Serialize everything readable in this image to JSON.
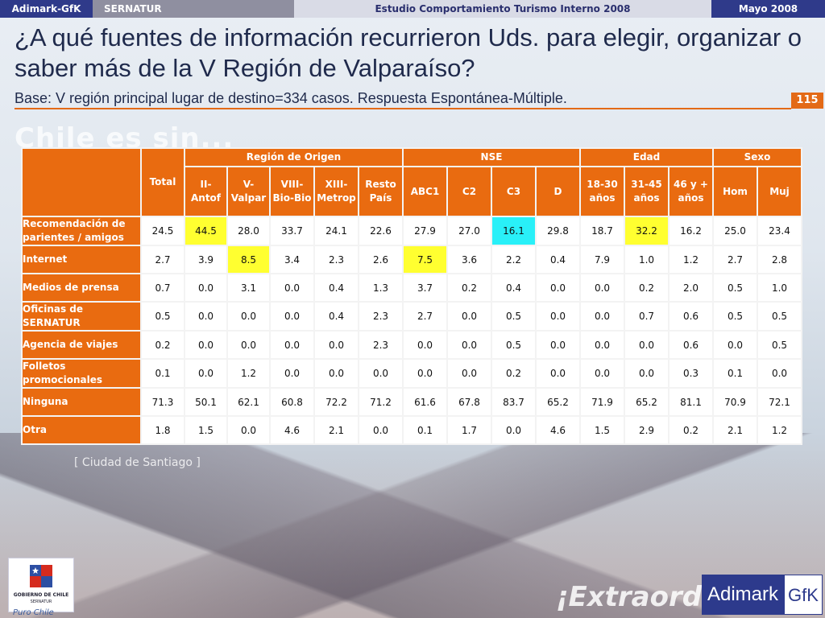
{
  "topbar": {
    "left": "Adimark-GfK",
    "client": "SERNATUR",
    "study": "Estudio Comportamiento Turismo Interno 2008",
    "date": "Mayo 2008"
  },
  "title": "¿A qué fuentes de información recurrieron Uds. para elegir, organizar o saber más de la V Región de Valparaíso?",
  "subtitle": "Base: V región principal lugar de destino=334 casos.  Respuesta Espontánea-Múltiple.",
  "page_number": "115",
  "background": {
    "headline": "Chile es sin...",
    "caption": "[ Ciudad de Santiago ]",
    "slogan": "¡Extraord"
  },
  "table": {
    "total_label": "Total",
    "groups": {
      "region": "Región de Origen",
      "nse": "NSE",
      "edad": "Edad",
      "sexo": "Sexo"
    },
    "columns": {
      "antof_l1": "II-",
      "antof_l2": "Antof",
      "valpar_l1": "V-",
      "valpar_l2": "Valpar",
      "biobio_l1": "VIII-",
      "biobio_l2": "Bio-Bio",
      "metrop_l1": "XIII-",
      "metrop_l2": "Metrop",
      "resto_l1": "Resto",
      "resto_l2": "País",
      "abc1": "ABC1",
      "c2": "C2",
      "c3": "C3",
      "d": "D",
      "e1_l1": "18-30",
      "e1_l2": "años",
      "e2_l1": "31-45",
      "e2_l2": "años",
      "e3_l1": "46 y +",
      "e3_l2": "años",
      "hom": "Hom",
      "muj": "Muj"
    },
    "rows": [
      {
        "label_l1": "Recomendación de",
        "label_l2": "parientes / amigos",
        "values": [
          "24.5",
          "44.5",
          "28.0",
          "33.7",
          "24.1",
          "22.6",
          "27.9",
          "27.0",
          "16.1",
          "29.8",
          "18.7",
          "32.2",
          "16.2",
          "25.0",
          "23.4"
        ]
      },
      {
        "label_l1": "Internet",
        "label_l2": "",
        "values": [
          "2.7",
          "3.9",
          "8.5",
          "3.4",
          "2.3",
          "2.6",
          "7.5",
          "3.6",
          "2.2",
          "0.4",
          "7.9",
          "1.0",
          "1.2",
          "2.7",
          "2.8"
        ]
      },
      {
        "label_l1": "Medios de prensa",
        "label_l2": "",
        "values": [
          "0.7",
          "0.0",
          "3.1",
          "0.0",
          "0.4",
          "1.3",
          "3.7",
          "0.2",
          "0.4",
          "0.0",
          "0.0",
          "0.2",
          "2.0",
          "0.5",
          "1.0"
        ]
      },
      {
        "label_l1": "Oficinas de",
        "label_l2": "SERNATUR",
        "values": [
          "0.5",
          "0.0",
          "0.0",
          "0.0",
          "0.4",
          "2.3",
          "2.7",
          "0.0",
          "0.5",
          "0.0",
          "0.0",
          "0.7",
          "0.6",
          "0.5",
          "0.5"
        ]
      },
      {
        "label_l1": "Agencia de viajes",
        "label_l2": "",
        "values": [
          "0.2",
          "0.0",
          "0.0",
          "0.0",
          "0.0",
          "2.3",
          "0.0",
          "0.0",
          "0.5",
          "0.0",
          "0.0",
          "0.0",
          "0.6",
          "0.0",
          "0.5"
        ]
      },
      {
        "label_l1": "Folletos",
        "label_l2": "promocionales",
        "values": [
          "0.1",
          "0.0",
          "1.2",
          "0.0",
          "0.0",
          "0.0",
          "0.0",
          "0.0",
          "0.2",
          "0.0",
          "0.0",
          "0.0",
          "0.3",
          "0.1",
          "0.0"
        ]
      },
      {
        "label_l1": "Ninguna",
        "label_l2": "",
        "values": [
          "71.3",
          "50.1",
          "62.1",
          "60.8",
          "72.2",
          "71.2",
          "61.6",
          "67.8",
          "83.7",
          "65.2",
          "71.9",
          "65.2",
          "81.1",
          "70.9",
          "72.1"
        ]
      },
      {
        "label_l1": "Otra",
        "label_l2": "",
        "values": [
          "1.8",
          "1.5",
          "0.0",
          "4.6",
          "2.1",
          "0.0",
          "0.1",
          "1.7",
          "0.0",
          "4.6",
          "1.5",
          "2.9",
          "0.2",
          "2.1",
          "1.2"
        ]
      }
    ],
    "highlights": {
      "yellow": [
        "0-1",
        "0-11",
        "1-2",
        "1-6"
      ],
      "cyan": [
        "0-8"
      ]
    },
    "colors": {
      "header_bg": "#e96b10",
      "highlight_yellow": "#ffff30",
      "highlight_cyan": "#29f0f8"
    }
  },
  "logos": {
    "gobierno_l1": "GOBIERNO DE CHILE",
    "gobierno_l2": "SERNATUR",
    "puro_chile": "Puro Chile",
    "adimark": "Adimark",
    "gfk": "GfK"
  }
}
